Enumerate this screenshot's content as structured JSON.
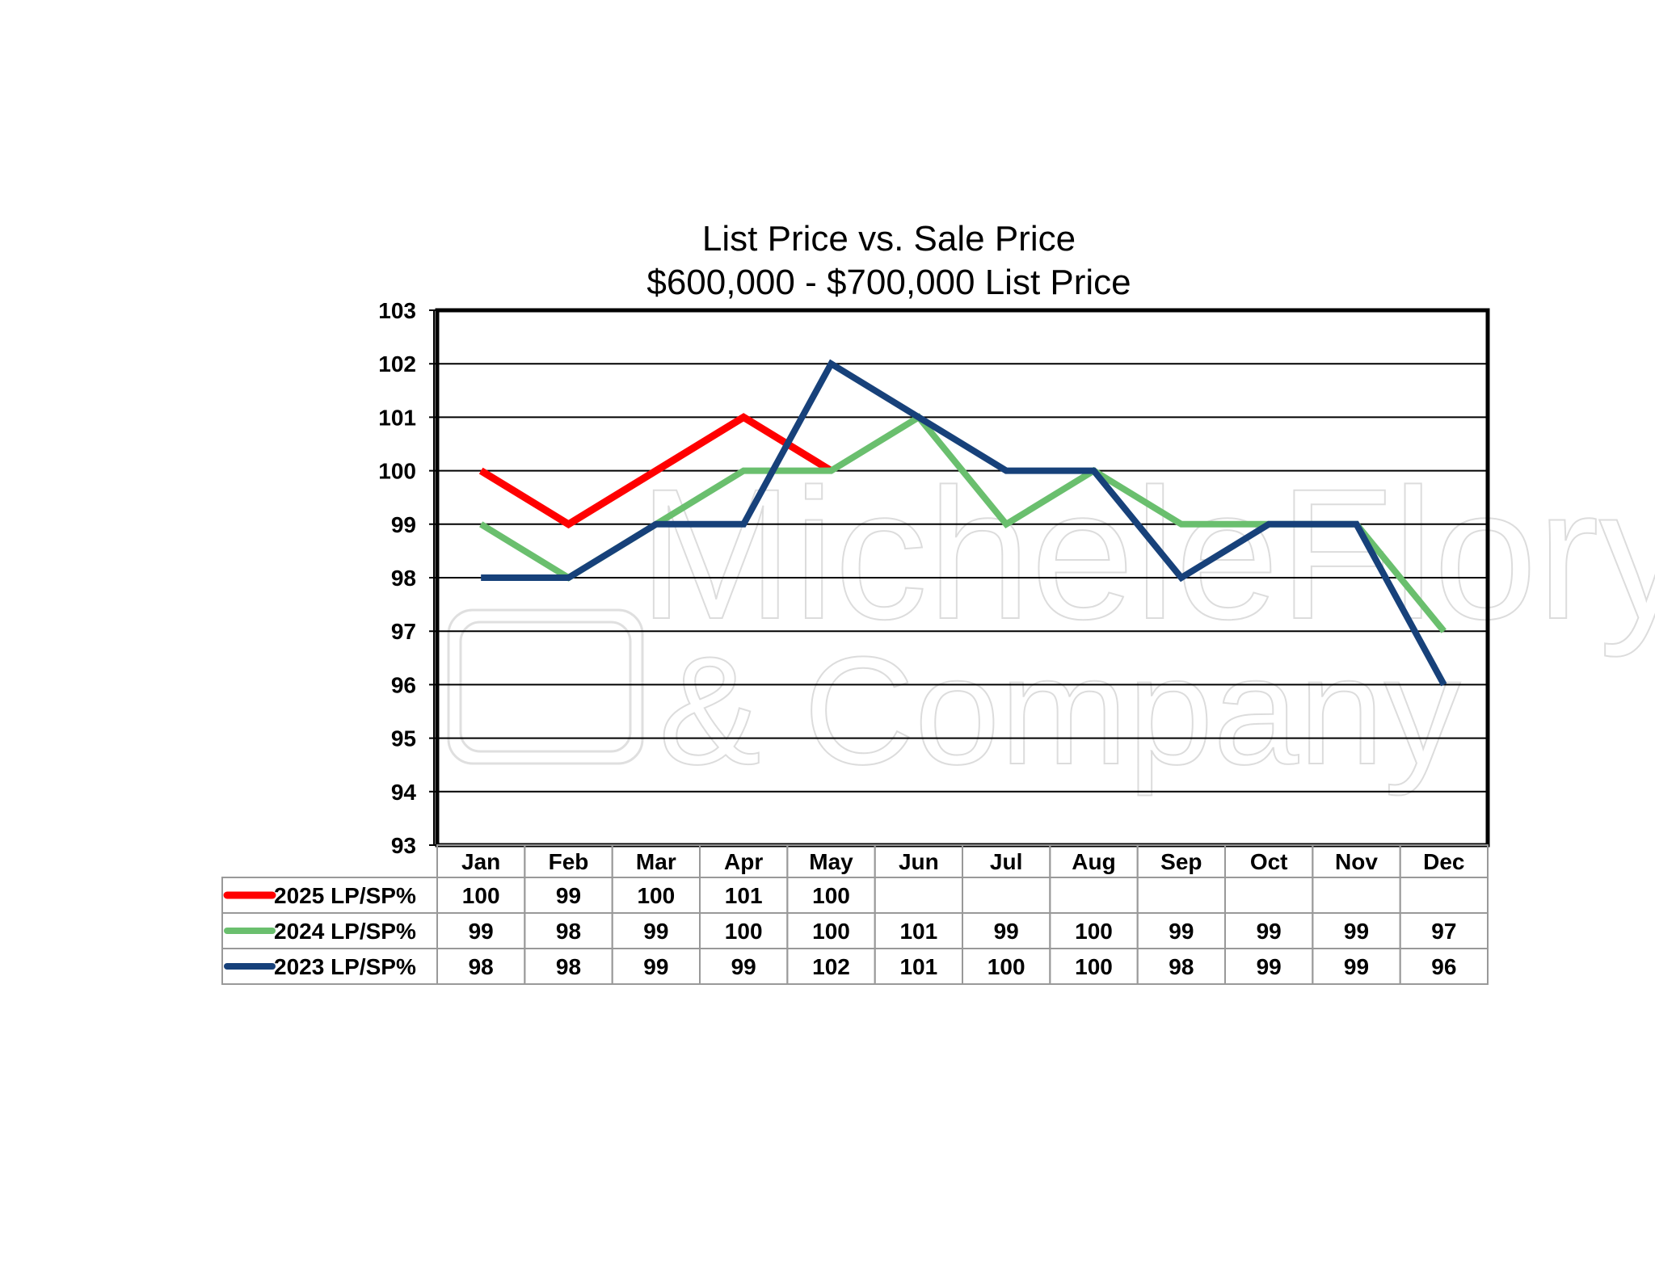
{
  "chart_data": {
    "type": "line",
    "title": "List Price vs. Sale Price",
    "subtitle": "$600,000 - $700,000 List Price",
    "categories": [
      "Jan",
      "Feb",
      "Mar",
      "Apr",
      "May",
      "Jun",
      "Jul",
      "Aug",
      "Sep",
      "Oct",
      "Nov",
      "Dec"
    ],
    "ylim": [
      93,
      103
    ],
    "yticks": [
      103,
      102,
      101,
      100,
      99,
      98,
      97,
      96,
      95,
      94,
      93
    ],
    "grid": true,
    "legend": "data table below chart",
    "series": [
      {
        "name": "2025 LP/SP%",
        "color": "#ff0000",
        "values": [
          100,
          99,
          100,
          101,
          100,
          null,
          null,
          null,
          null,
          null,
          null,
          null
        ]
      },
      {
        "name": "2024 LP/SP%",
        "color": "#6abf6e",
        "values": [
          99,
          98,
          99,
          100,
          100,
          101,
          99,
          100,
          99,
          99,
          99,
          97
        ]
      },
      {
        "name": "2023 LP/SP%",
        "color": "#17417a",
        "values": [
          98,
          98,
          99,
          99,
          102,
          101,
          100,
          100,
          98,
          99,
          99,
          96
        ]
      }
    ]
  },
  "watermark": {
    "line1": "MicheleFlory",
    "line2": "& Company"
  }
}
